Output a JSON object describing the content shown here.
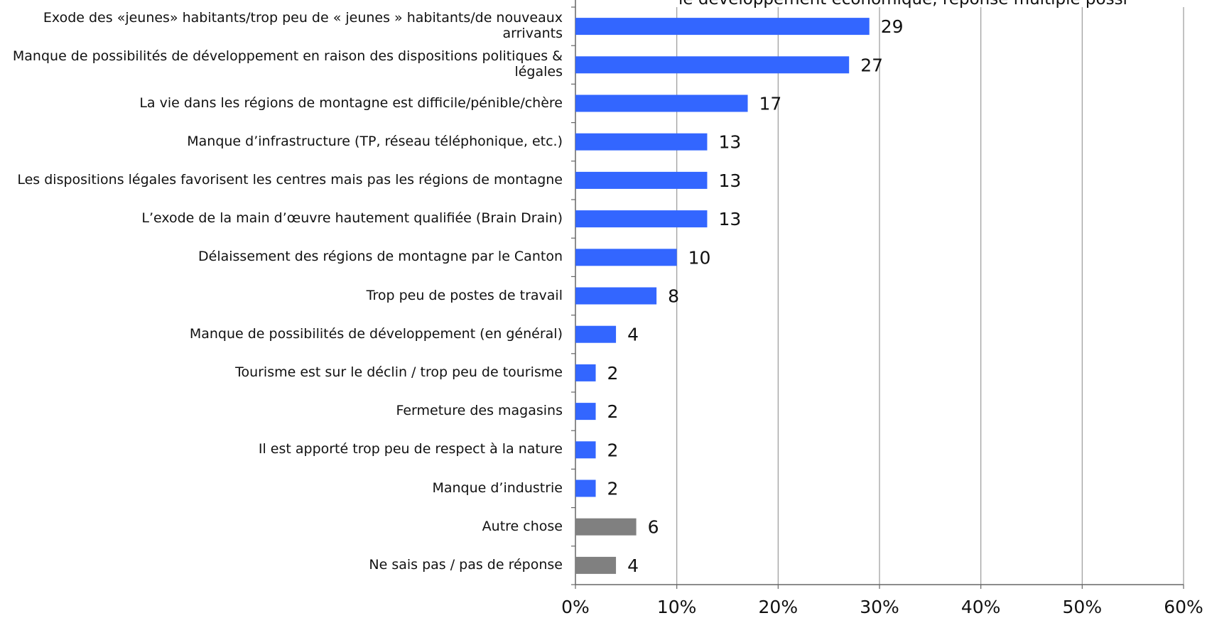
{
  "chart_data": {
    "type": "bar",
    "orientation": "horizontal",
    "title": "le développement économique, réponse multiple possi",
    "categories": [
      "Exode des «jeunes» habitants/trop peu de « jeunes » habitants/de nouveaux arrivants",
      "Manque de possibilités de développement en raison des dispositions politiques & légales",
      "La vie dans les régions de montagne est difficile/pénible/chère",
      "Manque d’infrastructure (TP, réseau téléphonique, etc.)",
      "Les dispositions légales favorisent les centres mais pas les régions de montagne",
      "L’exode de la main d’œuvre hautement qualifiée (Brain Drain)",
      "Délaissement des régions de montagne par le Canton",
      "Trop peu de postes de travail",
      "Manque de possibilités de développement (en général)",
      "Tourisme est sur le déclin / trop peu de tourisme",
      "Fermeture des magasins",
      "Il est apporté trop peu de respect à la nature",
      "Manque d’industrie",
      "Autre chose",
      "Ne sais pas / pas de réponse"
    ],
    "values": [
      29,
      27,
      17,
      13,
      13,
      13,
      10,
      8,
      4,
      2,
      2,
      2,
      2,
      6,
      4
    ],
    "colors": [
      "#3366ff",
      "#3366ff",
      "#3366ff",
      "#3366ff",
      "#3366ff",
      "#3366ff",
      "#3366ff",
      "#3366ff",
      "#3366ff",
      "#3366ff",
      "#3366ff",
      "#3366ff",
      "#3366ff",
      "#808080",
      "#808080"
    ],
    "xlim": [
      0,
      60
    ],
    "xticks": [
      {
        "value": 0,
        "label": "0%"
      },
      {
        "value": 10,
        "label": "10%"
      },
      {
        "value": 20,
        "label": "20%"
      },
      {
        "value": 30,
        "label": "30%"
      },
      {
        "value": 40,
        "label": "40%"
      },
      {
        "value": 50,
        "label": "50%"
      },
      {
        "value": 60,
        "label": "60%"
      }
    ],
    "grid": true
  }
}
